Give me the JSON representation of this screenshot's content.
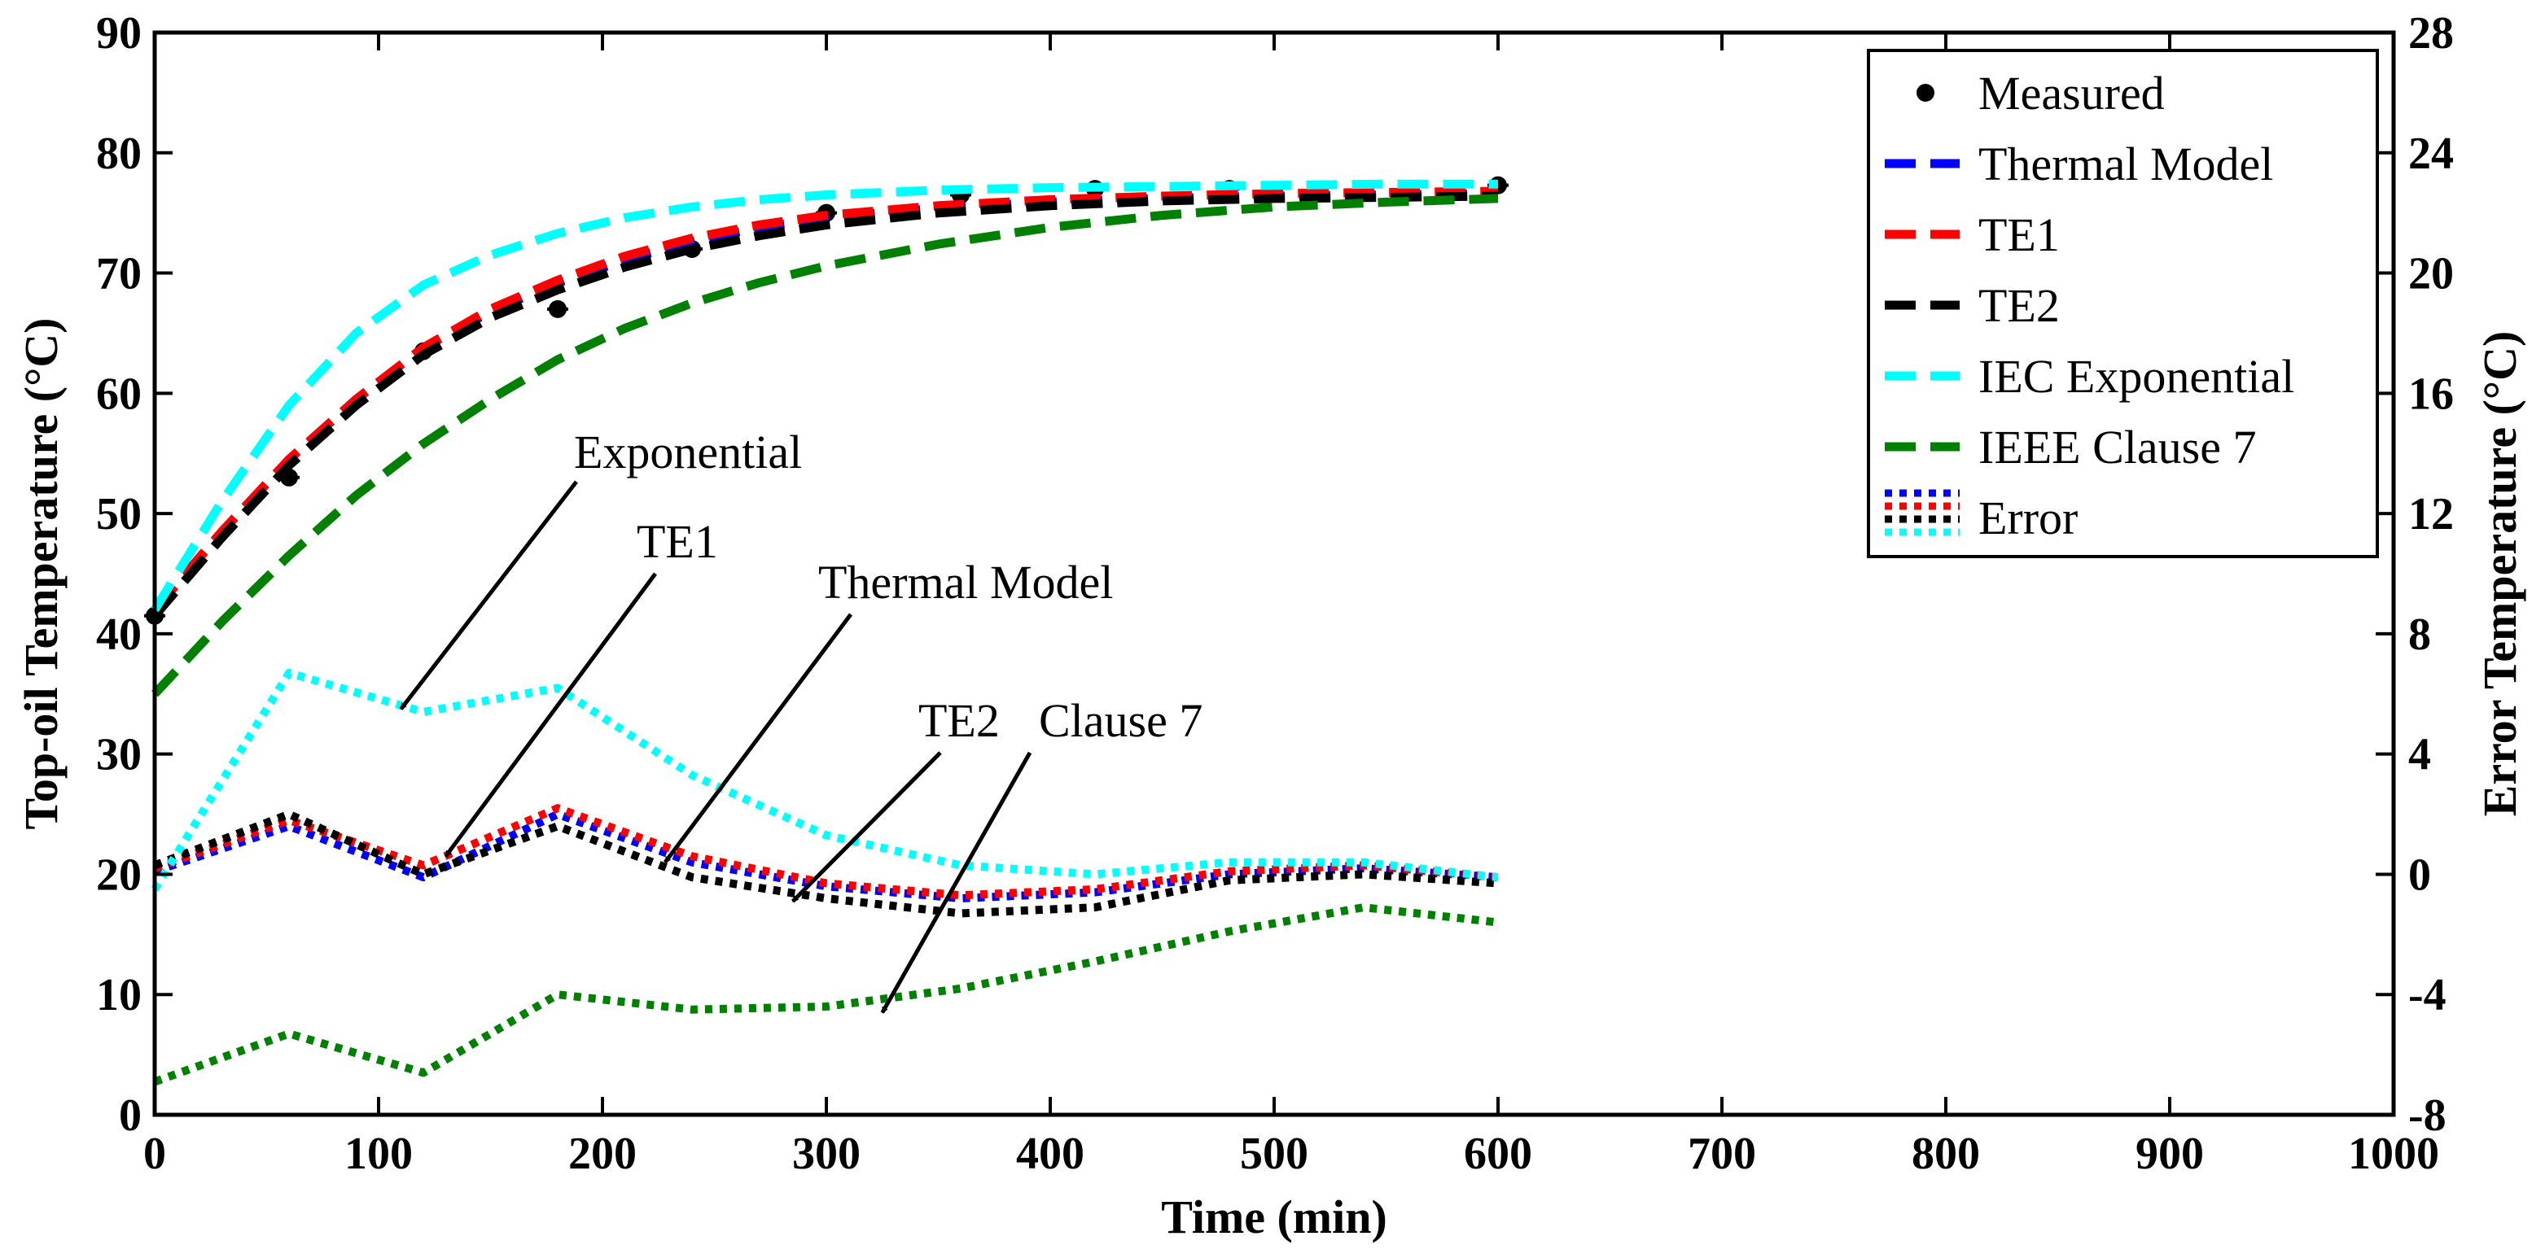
{
  "chart_data": {
    "type": "line",
    "title": "",
    "xlabel": "Time (min)",
    "ylabel_left": "Top-oil Temperature (°C)",
    "ylabel_right": "Error Temperature (°C)",
    "xlim": [
      0,
      1000
    ],
    "ylim_left": [
      0,
      90
    ],
    "ylim_right": [
      -8,
      28
    ],
    "x_ticks": [
      "0",
      "100",
      "200",
      "300",
      "400",
      "500",
      "600",
      "700",
      "800",
      "900",
      "1000"
    ],
    "y_left_ticks": [
      "0",
      "10",
      "20",
      "30",
      "40",
      "50",
      "60",
      "70",
      "80",
      "90"
    ],
    "y_right_ticks": [
      "-8",
      "-4",
      "0",
      "4",
      "8",
      "12",
      "16",
      "20",
      "24",
      "28"
    ],
    "grid": false,
    "legend_position": "top-right",
    "legend": [
      "Measured",
      "Thermal Model",
      "TE1",
      "TE2",
      "IEC Exponential",
      "IEEE Clause 7",
      "Error"
    ],
    "colors": {
      "measured": "#000000",
      "thermal_model": "#0000ff",
      "te1": "#ff0000",
      "te2": "#000000",
      "iec": "#00ffff",
      "ieee": "#008000"
    },
    "series": [
      {
        "name": "Measured",
        "axis": "left",
        "style": "marker",
        "color": "#000000",
        "x": [
          0,
          60,
          120,
          180,
          240,
          300,
          360,
          420,
          480,
          540,
          600
        ],
        "values": [
          41.5,
          53,
          63.5,
          67,
          72,
          75,
          76.5,
          77,
          77,
          77,
          77.3
        ]
      },
      {
        "name": "Thermal Model",
        "axis": "left",
        "style": "dashed",
        "color": "#0000ff",
        "x": [
          0,
          30,
          60,
          90,
          120,
          150,
          180,
          210,
          240,
          270,
          300,
          350,
          400,
          450,
          500,
          550,
          600
        ],
        "values": [
          42,
          48.5,
          54.5,
          59.5,
          63.8,
          66.8,
          69.2,
          71.1,
          72.6,
          73.8,
          74.6,
          75.4,
          75.9,
          76.2,
          76.4,
          76.5,
          76.6
        ]
      },
      {
        "name": "TE1",
        "axis": "left",
        "style": "dashed",
        "color": "#ff0000",
        "x": [
          0,
          30,
          60,
          90,
          120,
          150,
          180,
          210,
          240,
          270,
          300,
          350,
          400,
          450,
          500,
          550,
          600
        ],
        "values": [
          42,
          48.5,
          54.5,
          59.5,
          63.8,
          67,
          69.4,
          71.4,
          72.9,
          74,
          74.8,
          75.6,
          76.1,
          76.4,
          76.6,
          76.7,
          76.8
        ]
      },
      {
        "name": "TE2",
        "axis": "left",
        "style": "dashed",
        "color": "#000000",
        "x": [
          0,
          30,
          60,
          90,
          120,
          150,
          180,
          210,
          240,
          270,
          300,
          350,
          400,
          450,
          500,
          550,
          600
        ],
        "values": [
          41.5,
          48,
          54,
          59,
          63.2,
          66.3,
          68.6,
          70.5,
          72,
          73.1,
          74,
          75,
          75.6,
          76,
          76.2,
          76.3,
          76.4
        ]
      },
      {
        "name": "IEC Exponential",
        "axis": "left",
        "style": "dashed",
        "color": "#00ffff",
        "x": [
          0,
          30,
          60,
          90,
          120,
          150,
          180,
          210,
          240,
          270,
          300,
          350,
          400,
          450,
          500,
          550,
          600
        ],
        "values": [
          42,
          51,
          59,
          65,
          69,
          71.5,
          73.3,
          74.6,
          75.5,
          76.1,
          76.5,
          76.9,
          77.1,
          77.2,
          77.3,
          77.4,
          77.4
        ]
      },
      {
        "name": "IEEE Clause 7",
        "axis": "left",
        "style": "dashed",
        "color": "#008000",
        "x": [
          0,
          30,
          60,
          90,
          120,
          150,
          180,
          210,
          240,
          270,
          300,
          350,
          400,
          450,
          500,
          550,
          600
        ],
        "values": [
          35,
          41,
          46.5,
          51.5,
          55.8,
          59.5,
          62.8,
          65.4,
          67.5,
          69.2,
          70.6,
          72.4,
          73.8,
          74.8,
          75.5,
          75.9,
          76.2
        ]
      },
      {
        "name": "Error (Thermal Model)",
        "axis": "right",
        "style": "dotted",
        "color": "#0000ff",
        "x": [
          0,
          60,
          120,
          180,
          240,
          300,
          360,
          420,
          480,
          540,
          600
        ],
        "values": [
          0.1,
          1.6,
          -0.1,
          2,
          0.4,
          -0.4,
          -0.8,
          -0.6,
          0,
          0.2,
          -0.1
        ]
      },
      {
        "name": "Error (TE1)",
        "axis": "right",
        "style": "dotted",
        "color": "#ff0000",
        "x": [
          0,
          60,
          120,
          180,
          240,
          300,
          360,
          420,
          480,
          540,
          600
        ],
        "values": [
          0.2,
          1.8,
          0.3,
          2.2,
          0.6,
          -0.3,
          -0.7,
          -0.5,
          0.1,
          0.3,
          -0.1
        ]
      },
      {
        "name": "Error (TE2)",
        "axis": "right",
        "style": "dotted",
        "color": "#000000",
        "x": [
          0,
          60,
          120,
          180,
          240,
          300,
          360,
          420,
          480,
          540,
          600
        ],
        "values": [
          0.3,
          2,
          0,
          1.6,
          -0.1,
          -0.8,
          -1.3,
          -1.1,
          -0.2,
          0,
          -0.3
        ]
      },
      {
        "name": "Error (IEC Exponential)",
        "axis": "right",
        "style": "dotted",
        "color": "#00ffff",
        "x": [
          0,
          60,
          120,
          180,
          240,
          300,
          360,
          420,
          480,
          540,
          600
        ],
        "values": [
          -0.5,
          6.7,
          5.4,
          6.2,
          3.3,
          1.3,
          0.3,
          0,
          0.4,
          0.4,
          -0.1
        ]
      },
      {
        "name": "Error (IEEE Clause 7)",
        "axis": "right",
        "style": "dotted",
        "color": "#008000",
        "x": [
          0,
          60,
          120,
          180,
          240,
          300,
          360,
          420,
          480,
          540,
          600
        ],
        "values": [
          -6.9,
          -5.3,
          -6.6,
          -4,
          -4.5,
          -4.4,
          -3.8,
          -2.9,
          -1.9,
          -1.1,
          -1.6
        ]
      }
    ],
    "annotations": [
      {
        "text": "Exponential",
        "arrow_to": {
          "x": 110,
          "axis": "right",
          "y": 5.5
        }
      },
      {
        "text": "TE1",
        "arrow_to": {
          "x": 130,
          "axis": "right",
          "y": 0.6
        }
      },
      {
        "text": "Thermal Model",
        "arrow_to": {
          "x": 228,
          "axis": "right",
          "y": 0.4
        }
      },
      {
        "text": "TE2",
        "arrow_to": {
          "x": 285,
          "axis": "right",
          "y": -0.9
        }
      },
      {
        "text": "Clause 7",
        "arrow_to": {
          "x": 325,
          "axis": "right",
          "y": -4.6
        }
      }
    ]
  }
}
